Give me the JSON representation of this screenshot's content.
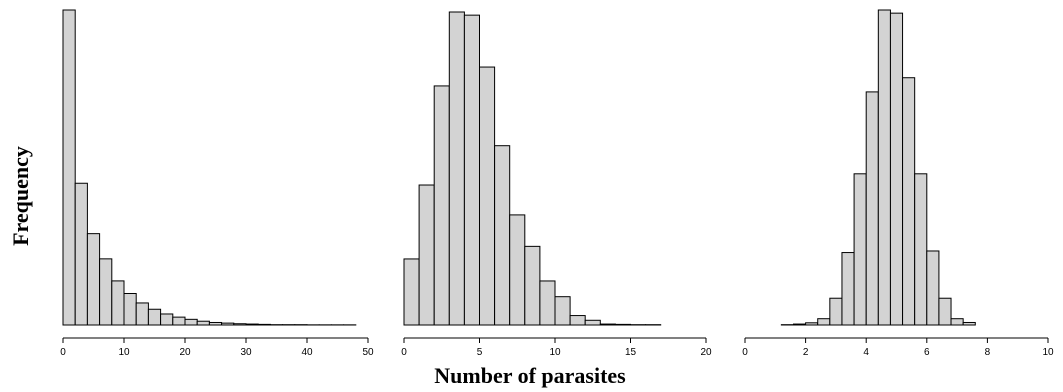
{
  "ylabel": "Frequency",
  "xlabel": "Number of parasites",
  "chart_data": [
    {
      "type": "bar",
      "subtype": "histogram",
      "xlim": [
        0,
        50
      ],
      "xticks": [
        "0",
        "10",
        "20",
        "30",
        "40",
        "50"
      ],
      "bin_width": 2,
      "bin_start": 0,
      "counts": [
        1000,
        450,
        290,
        210,
        140,
        100,
        70,
        50,
        35,
        25,
        18,
        12,
        8,
        6,
        4,
        3,
        2,
        1,
        1,
        1,
        0.5,
        0.5,
        0.5,
        0.5
      ],
      "ylabel": "Frequency",
      "xlabel": "Number of parasites",
      "grid": false
    },
    {
      "type": "bar",
      "subtype": "histogram",
      "xlim": [
        0,
        20
      ],
      "xticks": [
        "0",
        "5",
        "10",
        "15",
        "20"
      ],
      "bin_width": 1,
      "bin_start": 0,
      "counts": [
        210,
        445,
        760,
        995,
        985,
        820,
        570,
        350,
        250,
        140,
        90,
        30,
        15,
        3,
        2,
        1,
        1
      ],
      "ylabel": "Frequency",
      "xlabel": "Number of parasites",
      "grid": false
    },
    {
      "type": "bar",
      "subtype": "histogram",
      "xlim": [
        0,
        10
      ],
      "xticks": [
        "0",
        "2",
        "4",
        "6",
        "8",
        "10"
      ],
      "bin_width": 0.4,
      "bin_start": 0.4,
      "counts": [
        0,
        0,
        1,
        3,
        7,
        20,
        85,
        230,
        480,
        740,
        1000,
        990,
        785,
        480,
        235,
        85,
        20,
        8,
        0,
        0
      ],
      "ylabel": "Frequency",
      "xlabel": "Number of parasites",
      "grid": false
    }
  ]
}
